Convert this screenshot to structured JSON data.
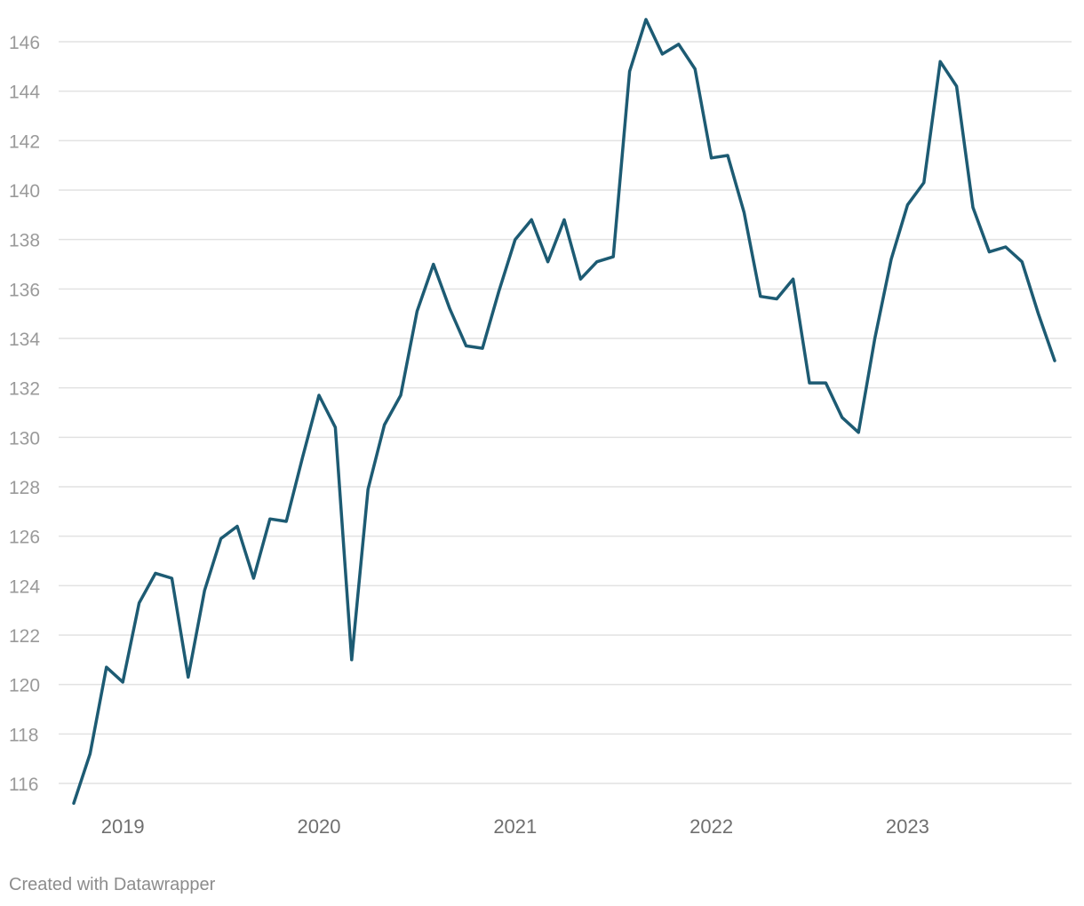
{
  "chart_data": {
    "type": "line",
    "title": "",
    "xlabel": "",
    "ylabel": "",
    "x_tick_labels": [
      "2019",
      "2020",
      "2021",
      "2022",
      "2023"
    ],
    "y_ticks": [
      116,
      118,
      120,
      122,
      124,
      126,
      128,
      130,
      132,
      134,
      136,
      138,
      140,
      142,
      144,
      146
    ],
    "ylim": [
      115,
      147
    ],
    "xlim": [
      "2018-10",
      "2023-10"
    ],
    "grid": true,
    "legend": "none",
    "series_color": "#1d5b73",
    "series": [
      {
        "x": [
          "2018-10",
          "2018-11",
          "2018-12",
          "2019-01",
          "2019-02",
          "2019-03",
          "2019-04",
          "2019-05",
          "2019-06",
          "2019-07",
          "2019-08",
          "2019-09",
          "2019-10",
          "2019-11",
          "2019-12",
          "2020-01",
          "2020-02",
          "2020-03",
          "2020-04",
          "2020-05",
          "2020-06",
          "2020-07",
          "2020-08",
          "2020-09",
          "2020-10",
          "2020-11",
          "2020-12",
          "2021-01",
          "2021-02",
          "2021-03",
          "2021-04",
          "2021-05",
          "2021-06",
          "2021-07",
          "2021-08",
          "2021-09",
          "2021-10",
          "2021-11",
          "2021-12",
          "2022-01",
          "2022-02",
          "2022-03",
          "2022-04",
          "2022-05",
          "2022-06",
          "2022-07",
          "2022-08",
          "2022-09",
          "2022-10",
          "2022-11",
          "2022-12",
          "2023-01",
          "2023-02",
          "2023-03",
          "2023-04",
          "2023-05",
          "2023-06",
          "2023-07",
          "2023-08",
          "2023-09",
          "2023-10"
        ],
        "values": [
          115.2,
          117.2,
          120.7,
          120.1,
          123.3,
          124.5,
          124.3,
          120.3,
          123.8,
          125.9,
          126.4,
          124.3,
          126.7,
          126.6,
          129.2,
          131.7,
          130.4,
          121.0,
          127.9,
          130.5,
          131.7,
          135.1,
          137.0,
          135.2,
          133.7,
          133.6,
          135.9,
          138.0,
          138.8,
          137.1,
          138.8,
          136.4,
          137.1,
          137.3,
          144.8,
          146.9,
          145.5,
          145.9,
          144.9,
          141.3,
          141.4,
          139.1,
          135.7,
          135.6,
          136.4,
          132.2,
          132.2,
          130.8,
          130.2,
          134.0,
          137.2,
          139.4,
          140.3,
          145.2,
          144.2,
          139.3,
          137.5,
          137.7,
          137.1,
          135.0,
          133.1
        ]
      }
    ]
  },
  "footer": {
    "credit": "Created with Datawrapper"
  }
}
